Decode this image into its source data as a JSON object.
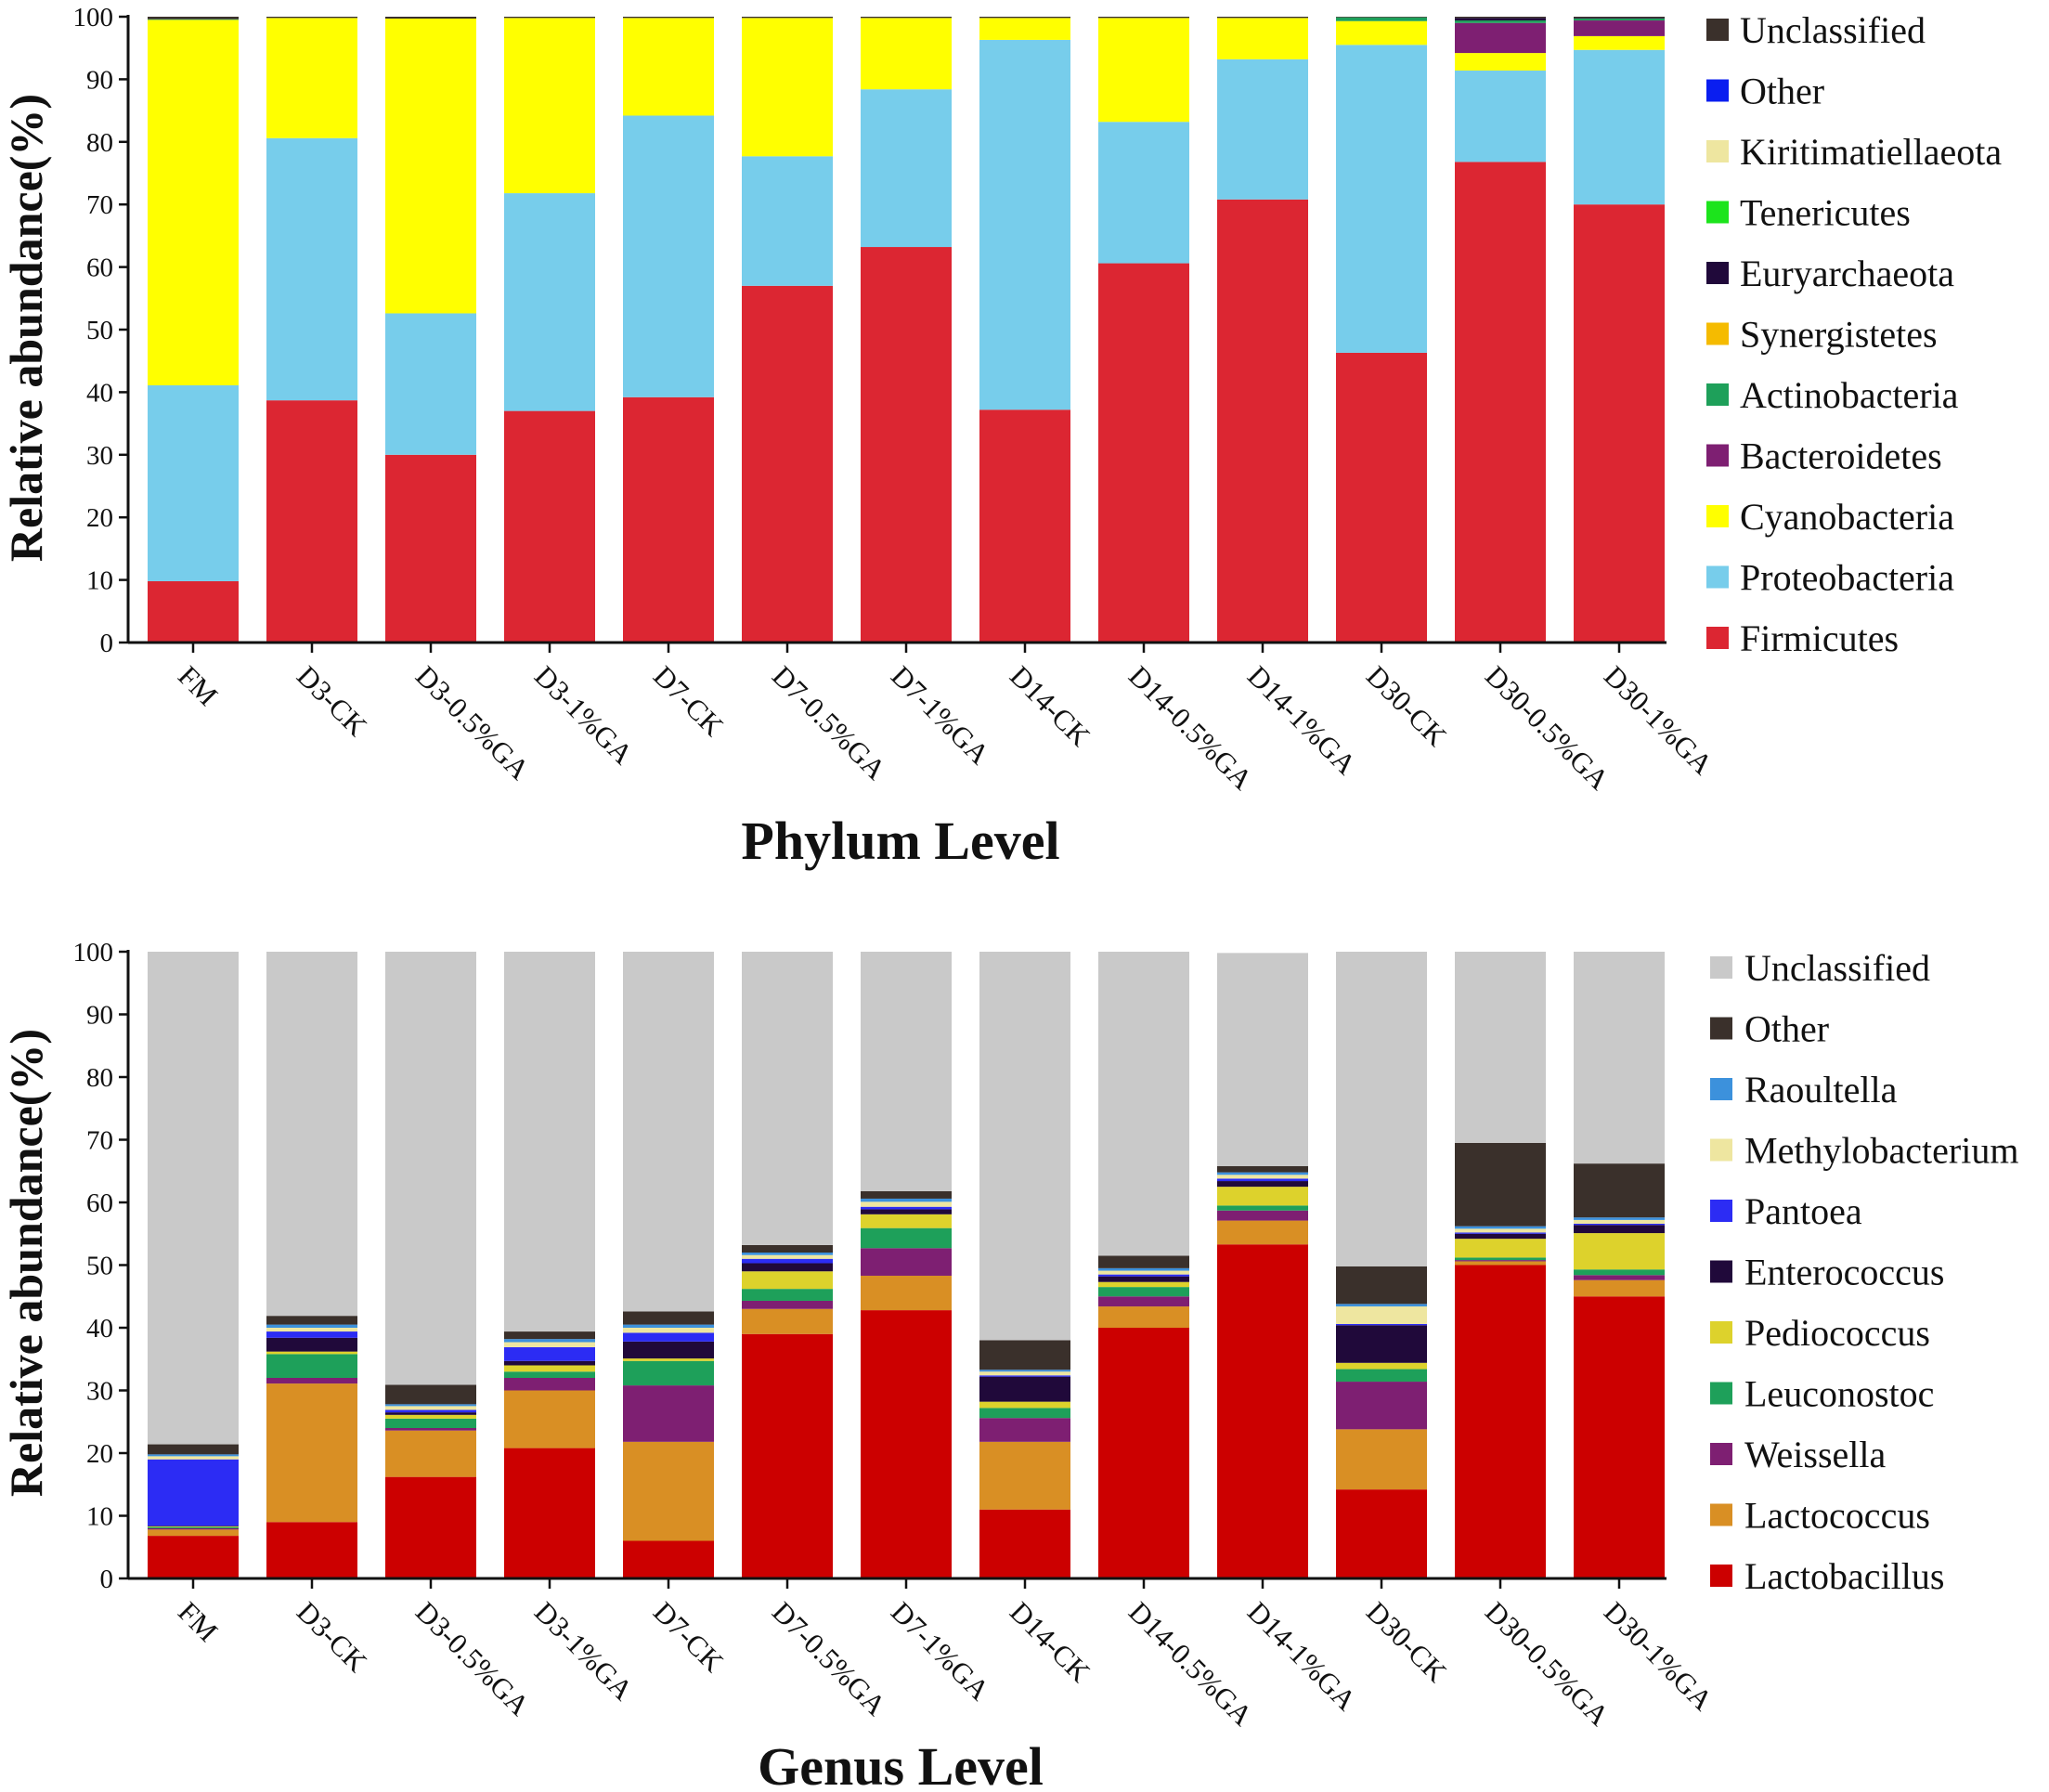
{
  "chart_data": [
    {
      "type": "bar",
      "stacked": true,
      "title": "",
      "xlabel": "Phylum Level",
      "ylabel": "Relative abundance(%)",
      "ylim": [
        0,
        100
      ],
      "yticks": [
        "0",
        "10",
        "20",
        "30",
        "40",
        "50",
        "60",
        "70",
        "80",
        "90",
        "100"
      ],
      "categories": [
        "FM",
        "D3-CK",
        "D3-0.5%GA",
        "D3-1%GA",
        "D7-CK",
        "D7-0.5%GA",
        "D7-1%GA",
        "D14-CK",
        "D14-0.5%GA",
        "D14-1%GA",
        "D30-CK",
        "D30-0.5%GA",
        "D30-1%GA"
      ],
      "legend_position": "right",
      "series": [
        {
          "name": "Firmicutes",
          "color": "#DC2632",
          "values": [
            9.8,
            38.7,
            30.0,
            37.0,
            39.2,
            57.0,
            63.2,
            37.2,
            60.6,
            70.8,
            46.3,
            76.8,
            70.0
          ]
        },
        {
          "name": "Proteobacteria",
          "color": "#77CDEB",
          "values": [
            31.3,
            41.9,
            22.6,
            34.8,
            45.0,
            20.7,
            25.2,
            59.1,
            22.6,
            22.4,
            49.2,
            14.6,
            24.7
          ]
        },
        {
          "name": "Cyanobacteria",
          "color": "#FFFF00",
          "values": [
            58.4,
            19.2,
            47.1,
            28.0,
            15.6,
            22.1,
            11.4,
            3.5,
            16.6,
            6.6,
            3.8,
            2.8,
            2.2
          ]
        },
        {
          "name": "Bacteroidetes",
          "color": "#7E1F72",
          "values": [
            0.0,
            0.0,
            0.0,
            0.0,
            0.0,
            0.0,
            0.0,
            0.0,
            0.0,
            0.0,
            0.0,
            4.8,
            2.5
          ]
        },
        {
          "name": "Actinobacteria",
          "color": "#1EA05A",
          "values": [
            0.1,
            0.0,
            0.0,
            0.0,
            0.0,
            0.0,
            0.0,
            0.0,
            0.0,
            0.0,
            0.6,
            0.4,
            0.3
          ]
        },
        {
          "name": "Synergistetes",
          "color": "#F5BB00",
          "values": [
            0.0,
            0.0,
            0.0,
            0.0,
            0.0,
            0.0,
            0.0,
            0.0,
            0.0,
            0.0,
            0.0,
            0.0,
            0.0
          ]
        },
        {
          "name": "Euryarchaeota",
          "color": "#20093A",
          "values": [
            0.0,
            0.0,
            0.0,
            0.0,
            0.0,
            0.0,
            0.0,
            0.0,
            0.0,
            0.0,
            0.0,
            0.4,
            0.1
          ]
        },
        {
          "name": "Tenericutes",
          "color": "#1CE41C",
          "values": [
            0.0,
            0.0,
            0.0,
            0.0,
            0.0,
            0.0,
            0.0,
            0.0,
            0.0,
            0.0,
            0.0,
            0.0,
            0.0
          ]
        },
        {
          "name": "Kiritimatiellaeota",
          "color": "#EEE6A0",
          "values": [
            0.0,
            0.0,
            0.0,
            0.0,
            0.0,
            0.0,
            0.0,
            0.0,
            0.0,
            0.0,
            0.0,
            0.0,
            0.0
          ]
        },
        {
          "name": "Other",
          "color": "#0A1EF0",
          "values": [
            0.0,
            0.0,
            0.0,
            0.0,
            0.0,
            0.0,
            0.0,
            0.0,
            0.0,
            0.0,
            0.0,
            0.0,
            0.0
          ]
        },
        {
          "name": "Unclassified",
          "color": "#3A302B",
          "values": [
            0.4,
            0.2,
            0.3,
            0.2,
            0.2,
            0.2,
            0.2,
            0.2,
            0.2,
            0.2,
            0.1,
            0.2,
            0.2
          ]
        }
      ]
    },
    {
      "type": "bar",
      "stacked": true,
      "title": "",
      "xlabel": "Genus Level",
      "ylabel": "Relative abundance(%)",
      "ylim": [
        0,
        100
      ],
      "yticks": [
        "0",
        "10",
        "20",
        "30",
        "40",
        "50",
        "60",
        "70",
        "80",
        "90",
        "100"
      ],
      "categories": [
        "FM",
        "D3-CK",
        "D3-0.5%GA",
        "D3-1%GA",
        "D7-CK",
        "D7-0.5%GA",
        "D7-1%GA",
        "D14-CK",
        "D14-0.5%GA",
        "D14-1%GA",
        "D30-CK",
        "D30-0.5%GA",
        "D30-1%GA"
      ],
      "legend_position": "right",
      "series": [
        {
          "name": "Lactobacillus",
          "color": "#CC0000",
          "values": [
            6.8,
            9.0,
            16.2,
            20.8,
            6.0,
            39.0,
            42.8,
            11.0,
            40.0,
            53.3,
            14.2,
            50.0,
            45.0
          ]
        },
        {
          "name": "Lactococcus",
          "color": "#D98F24",
          "values": [
            1.0,
            22.1,
            7.4,
            9.2,
            15.8,
            4.0,
            5.5,
            10.8,
            3.4,
            3.8,
            9.6,
            0.6,
            2.6
          ]
        },
        {
          "name": "Weissella",
          "color": "#7E1F72",
          "values": [
            0.2,
            0.9,
            0.4,
            2.0,
            9.0,
            1.3,
            4.4,
            3.8,
            1.6,
            1.6,
            7.6,
            0.2,
            0.8
          ]
        },
        {
          "name": "Leuconostoc",
          "color": "#1EA05A",
          "values": [
            0.2,
            3.8,
            1.5,
            1.0,
            3.9,
            1.9,
            3.2,
            1.6,
            1.5,
            0.8,
            2.0,
            0.4,
            0.9
          ]
        },
        {
          "name": "Pediococcus",
          "color": "#DDD22C",
          "values": [
            0.1,
            0.4,
            0.6,
            1.0,
            0.4,
            2.8,
            2.2,
            1.0,
            0.8,
            3.0,
            1.0,
            3.0,
            5.8
          ]
        },
        {
          "name": "Enterococcus",
          "color": "#20093A",
          "values": [
            0.1,
            2.2,
            0.4,
            0.7,
            2.7,
            1.3,
            0.8,
            4.0,
            0.9,
            0.9,
            6.0,
            0.8,
            1.3
          ]
        },
        {
          "name": "Pantoea",
          "color": "#2C2CF4",
          "values": [
            10.6,
            1.0,
            0.4,
            2.2,
            1.4,
            0.7,
            0.4,
            0.2,
            0.3,
            0.4,
            0.2,
            0.2,
            0.2
          ]
        },
        {
          "name": "Methylobacterium",
          "color": "#EEE6A0",
          "values": [
            0.5,
            0.6,
            0.6,
            0.8,
            0.8,
            0.6,
            0.8,
            0.6,
            0.6,
            0.6,
            2.8,
            0.6,
            0.6
          ]
        },
        {
          "name": "Raoultella",
          "color": "#3C91DC",
          "values": [
            0.3,
            0.5,
            0.3,
            0.5,
            0.5,
            0.4,
            0.5,
            0.3,
            0.4,
            0.4,
            0.4,
            0.4,
            0.4
          ]
        },
        {
          "name": "Other",
          "color": "#3A302B",
          "values": [
            1.6,
            1.4,
            3.1,
            1.2,
            2.1,
            1.2,
            1.2,
            4.7,
            2.0,
            1.0,
            6.0,
            13.3,
            8.6
          ]
        },
        {
          "name": "Unclassified",
          "color": "#C9C9C9",
          "values": [
            78.6,
            58.1,
            69.1,
            60.6,
            57.4,
            46.8,
            38.2,
            62.0,
            48.5,
            34.0,
            50.2,
            30.5,
            33.8
          ]
        }
      ]
    }
  ]
}
